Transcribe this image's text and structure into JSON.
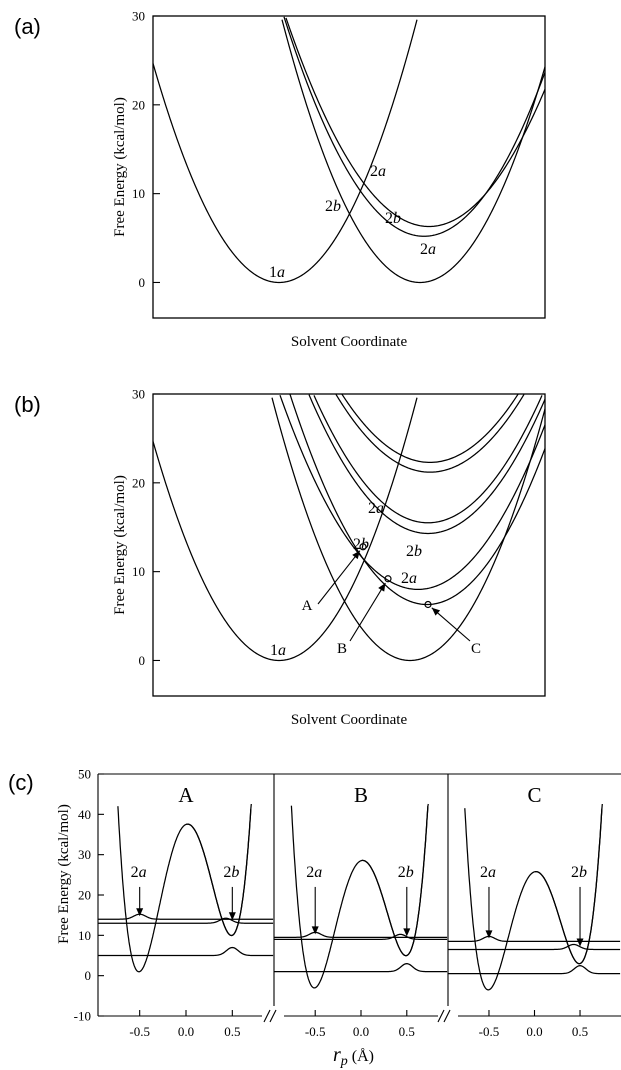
{
  "chart_data": [
    {
      "panel": "(a)",
      "type": "line",
      "xlabel": "Solvent Coordinate",
      "ylabel": "Free Energy (kcal/mol)",
      "ylim": [
        -4,
        30
      ],
      "yticks": [
        "0",
        "10",
        "20",
        "30"
      ],
      "series": [
        {
          "name": "1a",
          "minimum": 0
        },
        {
          "name": "2a",
          "minimum": 0
        },
        {
          "name": "2a",
          "minimum": 5.2
        },
        {
          "name": "2b",
          "minimum": 6.3
        }
      ],
      "annotations": [
        "1a",
        "2b",
        "2a",
        "2b",
        "2a"
      ]
    },
    {
      "panel": "(b)",
      "type": "line",
      "xlabel": "Solvent Coordinate",
      "ylabel": "Free Energy (kcal/mol)",
      "ylim": [
        -4,
        30
      ],
      "yticks": [
        "0",
        "10",
        "20",
        "30"
      ],
      "series": [
        {
          "name": "1a",
          "minimum": 0
        },
        {
          "name": "2a",
          "minimum": 0
        },
        {
          "name": "2a",
          "minimum": 6.3
        },
        {
          "name": "2b",
          "minimum": 8.0
        },
        {
          "name": "",
          "minimum": 14.3
        },
        {
          "name": "",
          "minimum": 15.5
        },
        {
          "name": "",
          "minimum": 21.2
        },
        {
          "name": "",
          "minimum": 22.3
        }
      ],
      "points": [
        {
          "name": "A",
          "energy": 12.8
        },
        {
          "name": "B",
          "energy": 9.2
        },
        {
          "name": "C",
          "energy": 6.3
        }
      ],
      "annotations": [
        "1a",
        "2a",
        "2b",
        "2b",
        "2a",
        "A",
        "B",
        "C"
      ]
    },
    {
      "panel": "(c)",
      "type": "line",
      "xlabel": "r",
      "xlabel_sub": "p",
      "xlabel_unit": "(Å)",
      "ylabel": "Free Energy (kcal/mol)",
      "ylim": [
        -10,
        50
      ],
      "yticks": [
        "-10",
        "0",
        "10",
        "20",
        "30",
        "40",
        "50"
      ],
      "xlim": [
        -0.95,
        0.95
      ],
      "xticks": [
        "-0.5",
        "0.0",
        "0.5"
      ],
      "subpanels": [
        {
          "title": "A",
          "barrier": 32,
          "well_left": 10,
          "well_right": 1,
          "levels": [
            5,
            13,
            14
          ],
          "labels": [
            "2a",
            "2b"
          ]
        },
        {
          "title": "B",
          "barrier": 27.5,
          "well_left": 5,
          "well_right": -3,
          "levels": [
            1,
            9,
            9.5
          ],
          "labels": [
            "2a",
            "2b"
          ]
        },
        {
          "title": "C",
          "barrier": 26,
          "well_left": 3,
          "well_right": -3.5,
          "levels": [
            0.5,
            6.5,
            8.5
          ],
          "labels": [
            "2a",
            "2b"
          ]
        }
      ]
    }
  ]
}
